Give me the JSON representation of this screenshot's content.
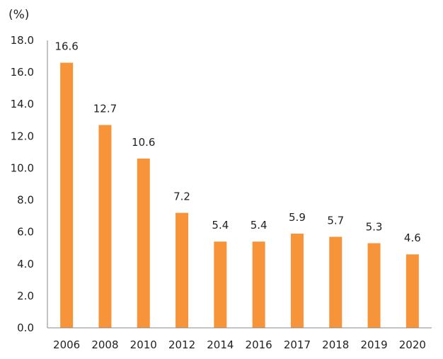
{
  "chart_data": {
    "type": "bar",
    "title": "",
    "unit_label": "(%)",
    "xlabel": "",
    "ylabel": "(%)",
    "categories": [
      "2006",
      "2008",
      "2010",
      "2012",
      "2014",
      "2016",
      "2017",
      "2018",
      "2019",
      "2020"
    ],
    "values": [
      16.6,
      12.7,
      10.6,
      7.2,
      5.4,
      5.4,
      5.9,
      5.7,
      5.3,
      4.6
    ],
    "value_labels": [
      "16.6",
      "12.7",
      "10.6",
      "7.2",
      "5.4",
      "5.4",
      "5.9",
      "5.7",
      "5.3",
      "4.6"
    ],
    "ylim": [
      0,
      18
    ],
    "yticks": [
      0,
      2,
      4,
      6,
      8,
      10,
      12,
      14,
      16,
      18
    ],
    "ytick_labels": [
      "0.0",
      "2.0",
      "4.0",
      "6.0",
      "8.0",
      "10.0",
      "12.0",
      "14.0",
      "16.0",
      "18.0"
    ],
    "grid": false,
    "legend": "none",
    "bar_color": "#F7943A",
    "axis_color": "#888888"
  }
}
